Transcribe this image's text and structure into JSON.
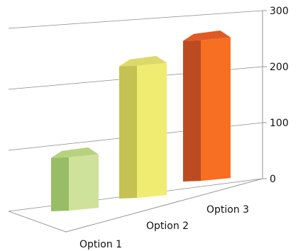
{
  "chart_data": {
    "type": "bar",
    "categories": [
      "Option 1",
      "Option 2",
      "Option 3"
    ],
    "values": [
      95,
      235,
      250
    ],
    "ylim": [
      0,
      300
    ],
    "yticks": [
      "0",
      "100",
      "200",
      "300"
    ],
    "grid": true,
    "legend": "none",
    "bar_colors": [
      {
        "front": "#cfe29b",
        "side": "#98bd67",
        "top": "#b6d27f"
      },
      {
        "front": "#f0ec72",
        "side": "#c4c252",
        "top": "#dcd96a"
      },
      {
        "front": "#f76f22",
        "side": "#bd4b22",
        "top": "#e05a26"
      }
    ]
  }
}
